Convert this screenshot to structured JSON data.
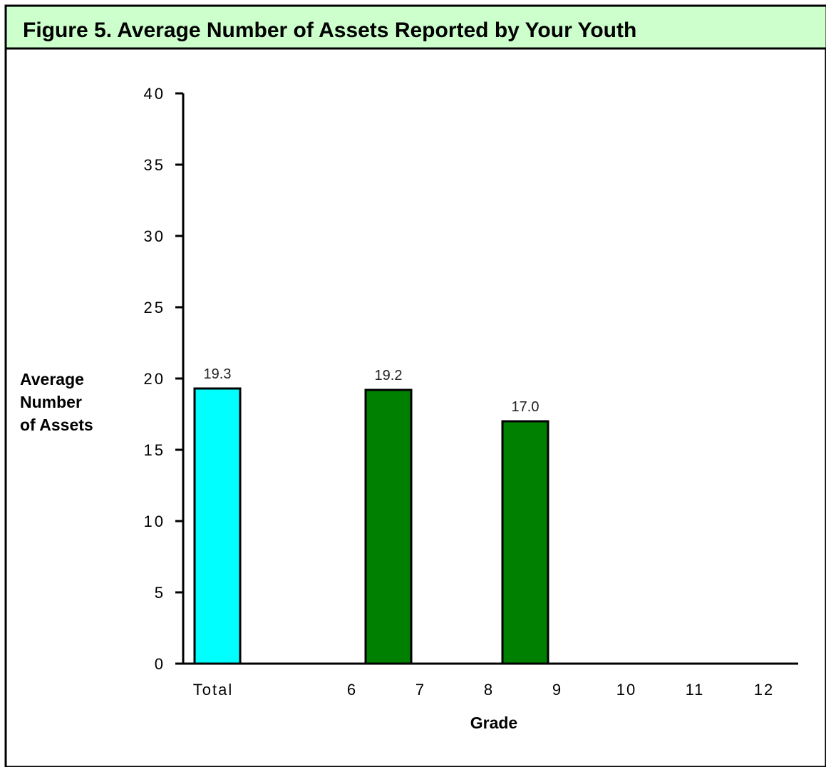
{
  "chart_data": {
    "type": "bar",
    "title": "Figure 5.  Average Number of Assets Reported by Your Youth",
    "xlabel": "Grade",
    "ylabel_lines": [
      "Average",
      "Number",
      "of Assets"
    ],
    "categories": [
      "Total",
      "6",
      "7",
      "8",
      "9",
      "10",
      "11",
      "12"
    ],
    "values": [
      19.3,
      null,
      null,
      19.2,
      null,
      17.0,
      null,
      null
    ],
    "data_labels": [
      "19.3",
      "",
      "",
      "19.2",
      "",
      "17.0",
      "",
      ""
    ],
    "bar_colors": [
      "#00ffff",
      "#008000",
      "#008000",
      "#008000",
      "#008000",
      "#008000",
      "#008000",
      "#008000"
    ],
    "ylim": [
      0,
      40
    ],
    "yticks": [
      0,
      5,
      10,
      15,
      20,
      25,
      30,
      35,
      40
    ],
    "grid": false,
    "legend": "none"
  },
  "colors": {
    "title_background": "#ccffcc",
    "total_bar": "#00ffff",
    "grade_bar": "#008000"
  }
}
